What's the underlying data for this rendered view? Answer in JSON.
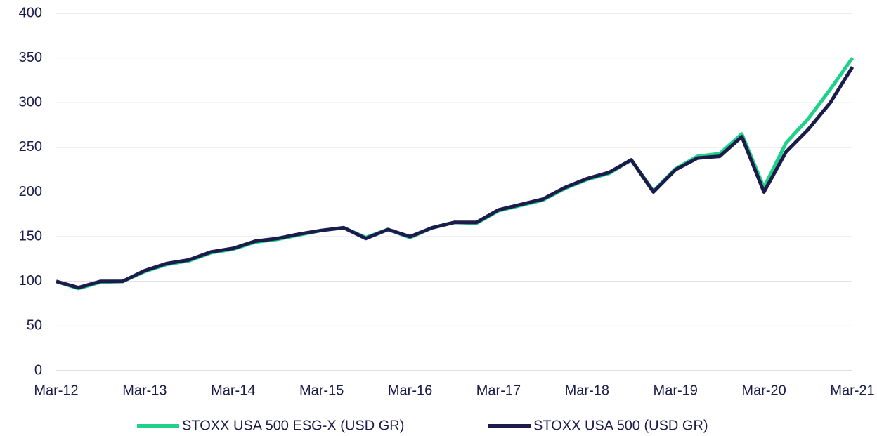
{
  "chart_data": {
    "type": "line",
    "categories": [
      "Mar-12",
      null,
      null,
      null,
      "Mar-13",
      null,
      null,
      null,
      "Mar-14",
      null,
      null,
      null,
      "Mar-15",
      null,
      null,
      null,
      "Mar-16",
      null,
      null,
      null,
      "Mar-17",
      null,
      null,
      null,
      "Mar-18",
      null,
      null,
      null,
      "Mar-19",
      null,
      null,
      null,
      "Mar-20",
      null,
      null,
      null,
      "Mar-21"
    ],
    "series": [
      {
        "name": "STOXX USA 500 ESG-X (USD GR)",
        "color": "#1fd18a",
        "values": [
          100,
          92,
          99,
          100,
          111,
          119,
          123,
          132,
          136,
          144,
          147,
          152,
          157,
          160,
          149,
          158,
          149,
          160,
          166,
          165,
          179,
          185,
          191,
          204,
          214,
          221,
          236,
          201,
          226,
          240,
          243,
          265,
          205,
          255,
          282,
          315,
          350
        ]
      },
      {
        "name": "STOXX USA 500 (USD GR)",
        "color": "#1c1c4c",
        "values": [
          100,
          93,
          100,
          100,
          112,
          120,
          124,
          133,
          137,
          145,
          148,
          153,
          157,
          160,
          148,
          158,
          150,
          160,
          166,
          166,
          180,
          186,
          192,
          205,
          215,
          222,
          236,
          200,
          225,
          238,
          240,
          262,
          200,
          245,
          270,
          300,
          340
        ]
      }
    ],
    "ylim": [
      0,
      400
    ],
    "yticks": [
      0,
      50,
      100,
      150,
      200,
      250,
      300,
      350,
      400
    ],
    "grid": true,
    "legend": "bottom"
  }
}
